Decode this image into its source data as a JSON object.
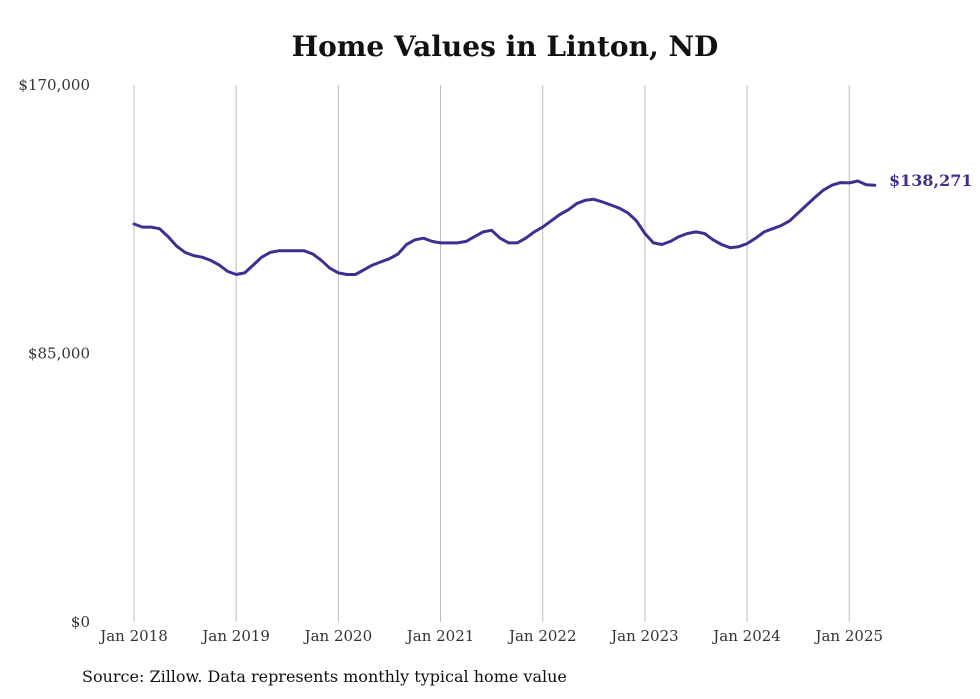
{
  "chart_data": {
    "type": "line",
    "title": "Home Values in Linton, ND",
    "xlabel": "",
    "ylabel": "",
    "ylim": [
      0,
      170000
    ],
    "y_ticks": [
      "$170,000",
      "$85,000",
      "$0"
    ],
    "y_tick_values": [
      170000,
      85000,
      0
    ],
    "x_ticks": [
      "Jan 2018",
      "Jan 2019",
      "Jan 2020",
      "Jan 2021",
      "Jan 2022",
      "Jan 2023",
      "Jan 2024",
      "Jan 2025"
    ],
    "x_range": [
      "2018-01",
      "2025-04"
    ],
    "grid": "vertical lines at each January",
    "line_color": "#3b3191",
    "end_label": "$138,271",
    "series": [
      {
        "x": [
          "2018-01",
          "2018-02",
          "2018-03",
          "2018-04",
          "2018-05",
          "2018-06",
          "2018-07",
          "2018-08",
          "2018-09",
          "2018-10",
          "2018-11",
          "2018-12",
          "2019-01",
          "2019-02",
          "2019-03",
          "2019-04",
          "2019-05",
          "2019-06",
          "2019-07",
          "2019-08",
          "2019-09",
          "2019-10",
          "2019-11",
          "2019-12",
          "2020-01",
          "2020-02",
          "2020-03",
          "2020-04",
          "2020-05",
          "2020-06",
          "2020-07",
          "2020-08",
          "2020-09",
          "2020-10",
          "2020-11",
          "2020-12",
          "2021-01",
          "2021-02",
          "2021-03",
          "2021-04",
          "2021-05",
          "2021-06",
          "2021-07",
          "2021-08",
          "2021-09",
          "2021-10",
          "2021-11",
          "2021-12",
          "2022-01",
          "2022-02",
          "2022-03",
          "2022-04",
          "2022-05",
          "2022-06",
          "2022-07",
          "2022-08",
          "2022-09",
          "2022-10",
          "2022-11",
          "2022-12",
          "2023-01",
          "2023-02",
          "2023-03",
          "2023-04",
          "2023-05",
          "2023-06",
          "2023-07",
          "2023-08",
          "2023-09",
          "2023-10",
          "2023-11",
          "2023-12",
          "2024-01",
          "2024-02",
          "2024-03",
          "2024-04",
          "2024-05",
          "2024-06",
          "2024-07",
          "2024-08",
          "2024-09",
          "2024-10",
          "2024-11",
          "2024-12",
          "2025-01",
          "2025-02",
          "2025-03",
          "2025-04"
        ],
        "values": [
          126000,
          125000,
          125000,
          124500,
          122000,
          119000,
          117000,
          116000,
          115500,
          114500,
          113000,
          111000,
          110000,
          110500,
          113000,
          115500,
          117000,
          117500,
          117500,
          117500,
          117500,
          116500,
          114500,
          112000,
          110500,
          110000,
          110000,
          111500,
          113000,
          114000,
          115000,
          116500,
          119500,
          121000,
          121500,
          120500,
          120000,
          120000,
          120000,
          120500,
          122000,
          123500,
          124000,
          121500,
          120000,
          120000,
          121500,
          123500,
          125000,
          127000,
          129000,
          130500,
          132500,
          133500,
          133800,
          133000,
          132000,
          131000,
          129500,
          127000,
          123000,
          120000,
          119500,
          120500,
          122000,
          123000,
          123500,
          123000,
          121000,
          119500,
          118500,
          118800,
          119800,
          121500,
          123500,
          124500,
          125500,
          127000,
          129500,
          132000,
          134500,
          136800,
          138300,
          139100,
          139000,
          139600,
          138400,
          138271
        ]
      }
    ]
  },
  "source": "Source: Zillow. Data represents monthly typical home value"
}
